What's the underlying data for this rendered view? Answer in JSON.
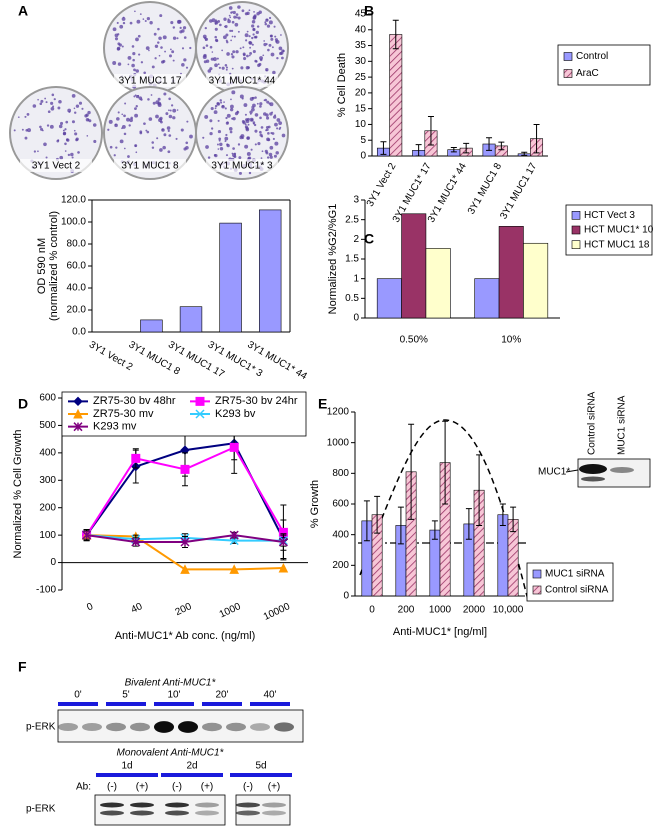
{
  "panel_labels": [
    "A",
    "B",
    "C",
    "D",
    "E",
    "F"
  ],
  "plates": [
    "3Y1 MUC1 17",
    "3Y1 MUC1* 44",
    "3Y1 Vect 2",
    "3Y1 MUC1 8",
    "3Y1 MUC1* 3"
  ],
  "chart_data": [
    {
      "type": "bar",
      "y_label": [
        "OD 590 nM",
        "(normalized % control)"
      ],
      "categories": [
        "3Y1 Vect 2",
        "3Y1 MUC1 8",
        "3Y1 MUC1 17",
        "3Y1 MUC1* 3",
        "3Y1 MUC1* 44"
      ],
      "values": [
        0,
        11,
        23,
        99,
        111
      ],
      "color": "#9999ff",
      "ylim": [
        0,
        120
      ],
      "yticks": [
        {
          "value": 0,
          "label": "0.0"
        },
        {
          "value": 20,
          "label": "20.0"
        },
        {
          "value": 40,
          "label": "40.0"
        },
        {
          "value": 60,
          "label": "60.0"
        },
        {
          "value": 80,
          "label": "80.0"
        },
        {
          "value": 100,
          "label": "100.0"
        },
        {
          "value": 120,
          "label": "120.0"
        }
      ]
    },
    {
      "type": "bar",
      "y_label": [
        "% Cell Death"
      ],
      "categories": [
        "3Y1 Vect 2",
        "3Y1 MUC1* 17",
        "3Y1 MUC1* 44",
        "3Y1 MUC1 8",
        "3Y1 MUC1 17"
      ],
      "series": [
        {
          "name": "Control",
          "color": "#9999ff",
          "values": [
            2.5,
            1.8,
            2,
            3.8,
            0.7
          ],
          "errors": [
            2,
            1.8,
            0.7,
            2,
            0.5
          ]
        },
        {
          "name": "AraC",
          "color": "#f7c6d6",
          "hatch": true,
          "values": [
            38.5,
            8,
            2.5,
            3.2,
            5.5
          ],
          "errors": [
            4.5,
            4.5,
            1.5,
            1.2,
            4.5
          ]
        }
      ],
      "ylim": [
        0,
        45
      ],
      "yticks": [
        0,
        5,
        10,
        15,
        20,
        25,
        30,
        35,
        40,
        45
      ],
      "legend": "right"
    },
    {
      "type": "bar",
      "y_label": [
        "Normalized %G2/%G1"
      ],
      "categories": [
        "0.50%",
        "10%"
      ],
      "series": [
        {
          "name": "HCT Vect 3",
          "color": "#9999ff",
          "values": [
            1,
            1
          ]
        },
        {
          "name": "HCT MUC1* 10",
          "color": "#993366",
          "values": [
            2.65,
            2.33
          ]
        },
        {
          "name": "HCT MUC1 18",
          "color": "#ffffcc",
          "values": [
            1.77,
            1.9
          ]
        }
      ],
      "ylim": [
        0,
        3
      ],
      "yticks": [
        0,
        0.5,
        1,
        1.5,
        2,
        2.5,
        3
      ],
      "legend": "right"
    },
    {
      "type": "line",
      "y_label": [
        "Normalized % Cell Growth"
      ],
      "x_label": "Anti-MUC1* Ab conc. (ng/ml)",
      "categories": [
        "0",
        "40",
        "200",
        "1000",
        "10000"
      ],
      "series": [
        {
          "name": "ZR75-30 bv 48hr",
          "color": "#000080",
          "marker": "diamond",
          "values": [
            100,
            350,
            410,
            435,
            85
          ],
          "errors": [
            20,
            60,
            95,
            110,
            70
          ]
        },
        {
          "name": "ZR75-30 bv 24hr",
          "color": "#ff00ff",
          "marker": "square",
          "values": [
            100,
            380,
            340,
            420,
            110
          ],
          "errors": [
            20,
            35,
            60,
            45,
            100
          ]
        },
        {
          "name": "ZR75-30 mv",
          "color": "#ff9900",
          "marker": "triangle",
          "values": [
            100,
            95,
            -25,
            -25,
            -20
          ]
        },
        {
          "name": "K293 bv",
          "color": "#33ccff",
          "marker": "x",
          "values": [
            100,
            85,
            90,
            80,
            80
          ],
          "errors": [
            15,
            15,
            15,
            10,
            20
          ]
        },
        {
          "name": "K293 mv",
          "color": "#800080",
          "marker": "star",
          "values": [
            100,
            75,
            75,
            100,
            75
          ],
          "errors": [
            20,
            15,
            20,
            10,
            30
          ]
        }
      ],
      "ylim": [
        -100,
        600
      ],
      "yticks": [
        -100,
        0,
        100,
        200,
        300,
        400,
        500,
        600
      ],
      "legend": "top"
    },
    {
      "type": "bar",
      "y_label": [
        "% Growth"
      ],
      "x_label": "Anti-MUC1* [ng/ml]",
      "categories": [
        "0",
        "200",
        "1000",
        "2000",
        "10,000"
      ],
      "series": [
        {
          "name": "MUC1 siRNA",
          "color": "#9999ff",
          "values": [
            490,
            460,
            430,
            470,
            530
          ],
          "errors": [
            130,
            120,
            60,
            100,
            70
          ]
        },
        {
          "name": "Control siRNA",
          "color": "#f7c6d6",
          "hatch": true,
          "values": [
            530,
            810,
            870,
            690,
            500
          ],
          "errors": [
            120,
            310,
            270,
            230,
            80
          ]
        }
      ],
      "ylim": [
        0,
        1200
      ],
      "yticks": [
        0,
        200,
        400,
        600,
        800,
        1000,
        1200
      ],
      "legend": "right"
    }
  ],
  "blot_e": {
    "lanes": [
      "Control siRNA",
      "MUC1 siRNA"
    ],
    "band": "MUC1*"
  },
  "blot_f": {
    "bivalent": {
      "title": "Bivalent Anti-MUC1*",
      "times": [
        "0'",
        "5'",
        "10'",
        "20'",
        "40'"
      ],
      "row_label": "p-ERK"
    },
    "monovalent": {
      "title": "Monovalent Anti-MUC1*",
      "days": [
        "1d",
        "2d",
        "5d"
      ],
      "ab_label": "Ab:",
      "treatments": [
        "(-)",
        "(+)",
        "(-)",
        "(+)",
        "(-)",
        "(+)"
      ],
      "row_label": "p-ERK"
    }
  }
}
